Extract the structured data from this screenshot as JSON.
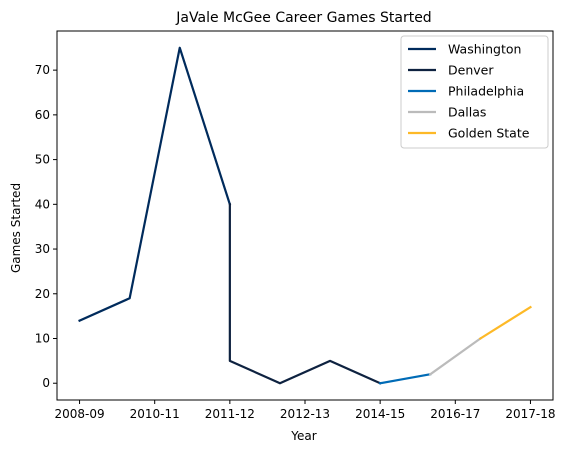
{
  "chart_data": {
    "type": "line",
    "title": "JaVale McGee Career Games Started",
    "xlabel": "Year",
    "ylabel": "Games Started",
    "x_ticks": [
      "2008-09",
      "2010-11",
      "2011-12",
      "2012-13",
      "2014-15",
      "2016-17",
      "2017-18"
    ],
    "y_ticks": [
      0,
      10,
      20,
      30,
      40,
      50,
      60,
      70
    ],
    "ylim": [
      -3.75,
      78.75
    ],
    "grid": false,
    "legend": "top-right",
    "series": [
      {
        "name": "Washington",
        "color": "#002B5C",
        "points": [
          {
            "x": 0,
            "y": 14
          },
          {
            "x": 1,
            "y": 19
          },
          {
            "x": 2,
            "y": 75
          },
          {
            "x": 3,
            "y": 40
          }
        ]
      },
      {
        "name": "Denver",
        "color": "#0E2240",
        "points": [
          {
            "x": 3,
            "y": 40
          },
          {
            "x": 3,
            "y": 5
          },
          {
            "x": 4,
            "y": 0
          },
          {
            "x": 5,
            "y": 5
          },
          {
            "x": 6,
            "y": 0
          }
        ]
      },
      {
        "name": "Philadelphia",
        "color": "#006BB6",
        "points": [
          {
            "x": 6,
            "y": 0
          },
          {
            "x": 7,
            "y": 2
          }
        ]
      },
      {
        "name": "Dallas",
        "color": "#BBBBBB",
        "points": [
          {
            "x": 7,
            "y": 2
          },
          {
            "x": 8,
            "y": 10
          }
        ]
      },
      {
        "name": "Golden State",
        "color": "#FDB927",
        "points": [
          {
            "x": 8,
            "y": 10
          },
          {
            "x": 9,
            "y": 17
          }
        ]
      }
    ]
  }
}
